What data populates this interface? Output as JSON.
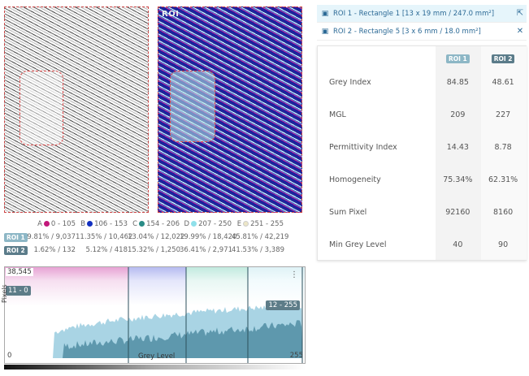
{
  "images": {
    "gray_label": "",
    "color_label": "ROI"
  },
  "legend": {
    "bins": [
      {
        "letter": "A",
        "range": "0 - 105",
        "color": "#c2187a"
      },
      {
        "letter": "B",
        "range": "106 - 153",
        "color": "#1230c0"
      },
      {
        "letter": "C",
        "range": "154 - 206",
        "color": "#2a8c86"
      },
      {
        "letter": "D",
        "range": "207 - 250",
        "color": "#8fe0ea"
      },
      {
        "letter": "E",
        "range": "251 - 255",
        "color": "#ece6c6"
      }
    ],
    "rows": [
      {
        "tag": "ROI 1",
        "values": [
          "9.81% / 9,037",
          "11.35% / 10,462",
          "13.04% / 12,022",
          "19.99% / 18,420",
          "45.81% / 42,219"
        ]
      },
      {
        "tag": "ROI 2",
        "values": [
          "1.62% / 132",
          "5.12% / 418",
          "15.32% / 1,250",
          "36.41% / 2,971",
          "41.53% / 3,389"
        ]
      }
    ]
  },
  "histogram": {
    "max_count": "38,545",
    "left_marker": "11 - 0",
    "right_marker": "12 - 255",
    "y_label": "Pixels",
    "x_label": "Grey Level",
    "x_min": "0",
    "x_max": "255",
    "band_colors": [
      "#e9a6d6",
      "#b9bdf0",
      "#c6ebe4",
      "#e2f3f6"
    ],
    "fill_light": "#a9d4e4",
    "fill_dark": "#5e98ad"
  },
  "roi_list": [
    {
      "label": "ROI 1 - Rectangle 1 [13 x 19 mm / 247.0 mm²]",
      "action_icon": "external-link-icon",
      "action_glyph": "⇱"
    },
    {
      "label": "ROI 2 - Rectangle 5 [3 x 6 mm / 18.0 mm²]",
      "action_icon": "close-icon",
      "action_glyph": "✕"
    }
  ],
  "stats": {
    "headers": [
      "ROI 1",
      "ROI 2"
    ],
    "rows": [
      {
        "label": "Grey Index",
        "v1": "84.85",
        "v2": "48.61"
      },
      {
        "label": "MGL",
        "v1": "209",
        "v2": "227"
      },
      {
        "label": "Permittivity Index",
        "v1": "14.43",
        "v2": "8.78"
      },
      {
        "label": "Homogeneity",
        "v1": "75.34%",
        "v2": "62.31%"
      },
      {
        "label": "Sum Pixel",
        "v1": "92160",
        "v2": "8160"
      },
      {
        "label": "Min Grey Level",
        "v1": "40",
        "v2": "90"
      }
    ]
  }
}
